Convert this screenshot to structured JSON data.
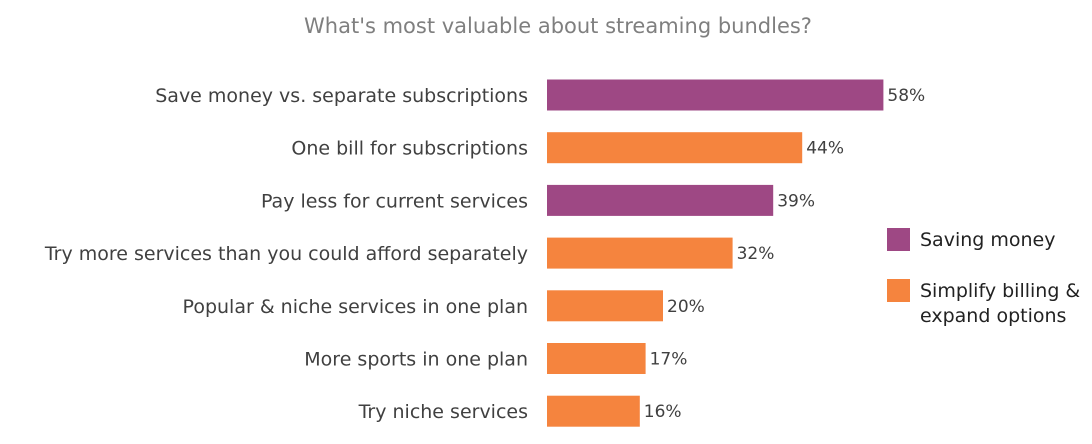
{
  "chart_data": {
    "type": "bar",
    "orientation": "horizontal",
    "title": "What's most valuable about streaming bundles?",
    "categories": [
      "Save money vs. separate subscriptions",
      "One bill for subscriptions",
      "Pay less for current services",
      "Try more services than you could afford separately",
      "Popular & niche services in one plan",
      "More sports in one plan",
      "Try niche services"
    ],
    "values": [
      58,
      44,
      39,
      32,
      20,
      17,
      16
    ],
    "value_labels": [
      "58%",
      "44%",
      "39%",
      "32%",
      "20%",
      "17%",
      "16%"
    ],
    "groups": [
      "saving_money",
      "simplify_billing",
      "saving_money",
      "simplify_billing",
      "simplify_billing",
      "simplify_billing",
      "simplify_billing"
    ],
    "legend": {
      "position": "right",
      "entries": [
        {
          "key": "saving_money",
          "label_lines": [
            "Saving money"
          ],
          "color": "#9e4884"
        },
        {
          "key": "simplify_billing",
          "label_lines": [
            "Simplify billing &",
            "expand options"
          ],
          "color": "#f5843e"
        }
      ]
    },
    "xlim": [
      0,
      100
    ],
    "grid": false,
    "unit": "%"
  }
}
